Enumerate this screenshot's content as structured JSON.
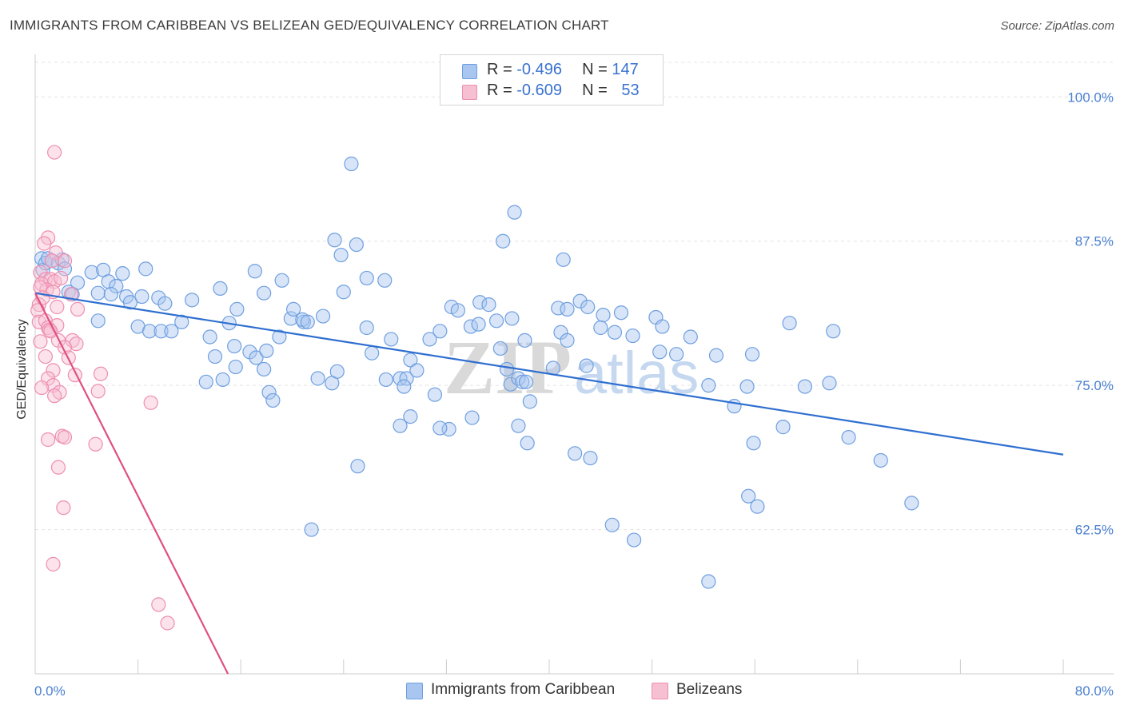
{
  "header": {
    "title": "IMMIGRANTS FROM CARIBBEAN VS BELIZEAN GED/EQUIVALENCY CORRELATION CHART",
    "source": "Source: ZipAtlas.com"
  },
  "legend_box": {
    "rows": [
      {
        "r_label": "R = ",
        "r_value": "-0.496",
        "n_label": "N = ",
        "n_value": "147"
      },
      {
        "r_label": "R = ",
        "r_value": "-0.609",
        "n_label": "N = ",
        "n_value": "53"
      }
    ]
  },
  "watermark": {
    "part1": "ZIP",
    "part2": "atlas"
  },
  "chart_data": {
    "type": "scatter",
    "title": "IMMIGRANTS FROM CARIBBEAN VS BELIZEAN GED/EQUIVALENCY CORRELATION CHART",
    "xlabel": "",
    "ylabel": "GED/Equivalency",
    "xlim": [
      0,
      80
    ],
    "ylim": [
      50,
      103
    ],
    "x_tick_labels": [
      "0.0%",
      "80.0%"
    ],
    "y_ticks": [
      62.5,
      75.0,
      87.5,
      100.0
    ],
    "y_tick_labels": [
      "62.5%",
      "75.0%",
      "87.5%",
      "100.0%"
    ],
    "grid": true,
    "legend_placement": "bottom-center",
    "colors": {
      "caribbean": "#6f9fe0",
      "caribbean_fill": "#a9c6f0",
      "belizean": "#ee8fb0",
      "belizean_fill": "#f6bfd2",
      "caribbean_line": "#2f6fd0",
      "belizean_line": "#e0507f"
    },
    "series": [
      {
        "name": "Immigrants from Caribbean",
        "r": -0.496,
        "n": 147,
        "trend": {
          "x": [
            0,
            80
          ],
          "y": [
            83.0,
            69.0
          ]
        },
        "points": [
          [
            0.5,
            86.0
          ],
          [
            0.6,
            85.0
          ],
          [
            0.8,
            85.6
          ],
          [
            1.0,
            86.0
          ],
          [
            1.3,
            85.8
          ],
          [
            1.8,
            85.6
          ],
          [
            2.1,
            85.9
          ],
          [
            2.3,
            85.1
          ],
          [
            2.6,
            83.1
          ],
          [
            3.3,
            83.9
          ],
          [
            2.9,
            82.9
          ],
          [
            4.4,
            84.8
          ],
          [
            5.3,
            85.0
          ],
          [
            4.9,
            83.0
          ],
          [
            5.7,
            84.0
          ],
          [
            6.3,
            83.6
          ],
          [
            6.8,
            84.7
          ],
          [
            5.9,
            82.9
          ],
          [
            7.1,
            82.7
          ],
          [
            7.4,
            82.2
          ],
          [
            8.3,
            82.7
          ],
          [
            8.6,
            85.1
          ],
          [
            9.6,
            82.6
          ],
          [
            10.1,
            82.1
          ],
          [
            4.9,
            80.6
          ],
          [
            8.0,
            80.1
          ],
          [
            8.9,
            79.7
          ],
          [
            9.8,
            79.7
          ],
          [
            10.6,
            79.7
          ],
          [
            11.4,
            80.5
          ],
          [
            12.2,
            82.4
          ],
          [
            14.4,
            83.4
          ],
          [
            15.1,
            80.4
          ],
          [
            15.7,
            81.6
          ],
          [
            13.6,
            79.2
          ],
          [
            15.5,
            78.4
          ],
          [
            14.0,
            77.5
          ],
          [
            15.6,
            76.6
          ],
          [
            13.3,
            75.3
          ],
          [
            14.6,
            75.5
          ],
          [
            16.7,
            77.9
          ],
          [
            17.2,
            77.4
          ],
          [
            18.0,
            78.0
          ],
          [
            17.8,
            76.4
          ],
          [
            19.0,
            79.2
          ],
          [
            18.2,
            74.4
          ],
          [
            18.5,
            73.7
          ],
          [
            19.9,
            80.8
          ],
          [
            20.9,
            80.5
          ],
          [
            17.1,
            84.9
          ],
          [
            17.8,
            83.0
          ],
          [
            19.2,
            84.1
          ],
          [
            20.1,
            81.6
          ],
          [
            20.8,
            80.7
          ],
          [
            21.2,
            80.5
          ],
          [
            22.4,
            81.0
          ],
          [
            22.0,
            75.6
          ],
          [
            23.1,
            75.2
          ],
          [
            23.5,
            76.2
          ],
          [
            23.3,
            87.6
          ],
          [
            23.8,
            86.3
          ],
          [
            24.0,
            83.1
          ],
          [
            25.0,
            87.2
          ],
          [
            25.8,
            84.3
          ],
          [
            27.2,
            84.1
          ],
          [
            25.8,
            80.0
          ],
          [
            26.2,
            77.8
          ],
          [
            27.7,
            79.0
          ],
          [
            27.3,
            75.5
          ],
          [
            28.4,
            75.6
          ],
          [
            28.9,
            75.6
          ],
          [
            28.7,
            74.9
          ],
          [
            29.2,
            77.2
          ],
          [
            29.7,
            76.3
          ],
          [
            30.7,
            79.0
          ],
          [
            31.1,
            74.2
          ],
          [
            29.2,
            72.3
          ],
          [
            28.4,
            71.5
          ],
          [
            31.5,
            79.7
          ],
          [
            32.2,
            71.2
          ],
          [
            31.5,
            71.3
          ],
          [
            32.4,
            81.8
          ],
          [
            32.9,
            81.5
          ],
          [
            33.9,
            80.1
          ],
          [
            34.5,
            80.3
          ],
          [
            34.6,
            82.2
          ],
          [
            35.3,
            82.0
          ],
          [
            35.9,
            80.6
          ],
          [
            37.1,
            80.8
          ],
          [
            36.2,
            78.2
          ],
          [
            36.7,
            76.4
          ],
          [
            37.0,
            75.1
          ],
          [
            37.6,
            75.6
          ],
          [
            37.9,
            75.3
          ],
          [
            38.2,
            75.3
          ],
          [
            38.5,
            73.6
          ],
          [
            34.0,
            72.2
          ],
          [
            38.1,
            78.9
          ],
          [
            40.7,
            81.7
          ],
          [
            40.9,
            79.6
          ],
          [
            41.4,
            78.9
          ],
          [
            40.3,
            76.5
          ],
          [
            42.9,
            76.7
          ],
          [
            44.2,
            81.1
          ],
          [
            44.0,
            80.0
          ],
          [
            45.6,
            81.3
          ],
          [
            45.1,
            79.6
          ],
          [
            46.5,
            79.3
          ],
          [
            48.3,
            80.9
          ],
          [
            48.8,
            80.1
          ],
          [
            48.6,
            77.9
          ],
          [
            49.9,
            77.7
          ],
          [
            51.0,
            79.2
          ],
          [
            52.4,
            75.0
          ],
          [
            53.0,
            77.6
          ],
          [
            55.8,
            77.7
          ],
          [
            55.4,
            74.9
          ],
          [
            54.4,
            73.2
          ],
          [
            55.5,
            65.4
          ],
          [
            56.2,
            64.5
          ],
          [
            58.7,
            80.4
          ],
          [
            62.1,
            79.7
          ],
          [
            59.9,
            74.9
          ],
          [
            61.8,
            75.2
          ],
          [
            37.3,
            90.0
          ],
          [
            36.4,
            87.5
          ],
          [
            24.6,
            94.2
          ],
          [
            41.1,
            85.9
          ],
          [
            41.4,
            81.6
          ],
          [
            42.4,
            82.3
          ],
          [
            43.0,
            81.8
          ],
          [
            37.6,
            71.5
          ],
          [
            38.3,
            70.0
          ],
          [
            42.0,
            69.1
          ],
          [
            43.2,
            68.7
          ],
          [
            44.9,
            62.9
          ],
          [
            46.6,
            61.6
          ],
          [
            52.4,
            58.0
          ],
          [
            55.9,
            70.0
          ],
          [
            58.2,
            71.4
          ],
          [
            63.3,
            70.5
          ],
          [
            65.8,
            68.5
          ],
          [
            68.2,
            64.8
          ],
          [
            21.5,
            62.5
          ],
          [
            25.1,
            68.0
          ]
        ]
      },
      {
        "name": "Belizeans",
        "r": -0.609,
        "n": 53,
        "trend": {
          "x": [
            0,
            15
          ],
          "y": [
            83.0,
            50.0
          ]
        },
        "points": [
          [
            1.5,
            95.2
          ],
          [
            1.0,
            87.8
          ],
          [
            0.7,
            87.3
          ],
          [
            1.6,
            86.5
          ],
          [
            1.3,
            85.8
          ],
          [
            0.4,
            84.8
          ],
          [
            0.8,
            84.2
          ],
          [
            1.2,
            84.2
          ],
          [
            1.5,
            84.0
          ],
          [
            0.5,
            83.8
          ],
          [
            0.9,
            83.3
          ],
          [
            1.4,
            83.1
          ],
          [
            2.3,
            85.8
          ],
          [
            2.8,
            82.9
          ],
          [
            0.3,
            82.0
          ],
          [
            0.2,
            81.5
          ],
          [
            1.7,
            81.8
          ],
          [
            3.3,
            81.6
          ],
          [
            0.3,
            80.5
          ],
          [
            0.8,
            80.6
          ],
          [
            1.0,
            80.0
          ],
          [
            1.7,
            80.2
          ],
          [
            1.1,
            79.8
          ],
          [
            1.8,
            78.9
          ],
          [
            0.4,
            78.8
          ],
          [
            2.9,
            78.9
          ],
          [
            3.2,
            78.6
          ],
          [
            2.3,
            78.3
          ],
          [
            0.8,
            77.5
          ],
          [
            2.6,
            77.4
          ],
          [
            1.4,
            76.3
          ],
          [
            3.1,
            75.9
          ],
          [
            5.1,
            76.0
          ],
          [
            1.0,
            75.6
          ],
          [
            1.4,
            75.0
          ],
          [
            0.5,
            74.8
          ],
          [
            4.9,
            74.5
          ],
          [
            1.9,
            74.4
          ],
          [
            1.5,
            74.1
          ],
          [
            9.0,
            73.5
          ],
          [
            1.0,
            70.3
          ],
          [
            2.1,
            70.6
          ],
          [
            2.3,
            70.5
          ],
          [
            4.7,
            69.9
          ],
          [
            1.8,
            67.9
          ],
          [
            2.2,
            64.4
          ],
          [
            1.4,
            59.5
          ],
          [
            9.6,
            56.0
          ],
          [
            10.3,
            54.4
          ],
          [
            0.4,
            83.5
          ],
          [
            0.6,
            82.6
          ],
          [
            2.0,
            84.3
          ],
          [
            1.2,
            79.7
          ]
        ]
      }
    ]
  },
  "bottom_legend": {
    "items": [
      {
        "label": "Immigrants from Caribbean"
      },
      {
        "label": "Belizeans"
      }
    ]
  }
}
